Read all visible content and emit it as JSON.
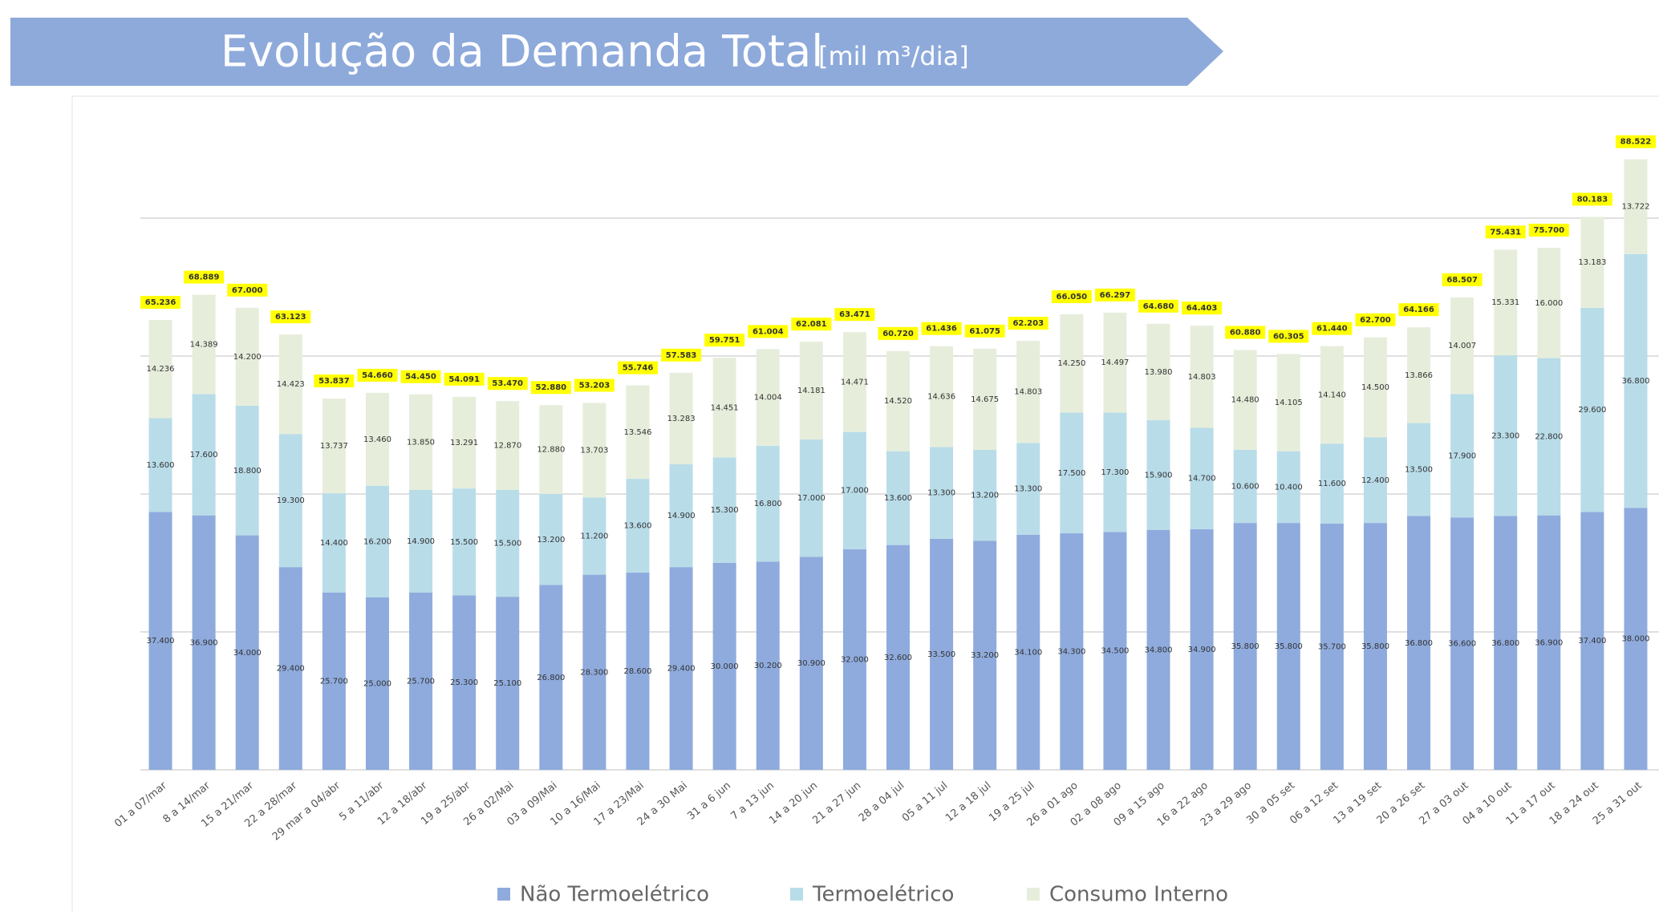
{
  "chart_data": {
    "type": "stacked_bar",
    "title": "Evolução da Demanda Total",
    "subtitle": "[mil m³/dia]",
    "categories": [
      "01 a 07/mar",
      "8 a 14/mar",
      "15 a 21/mar",
      "22 a 28/mar",
      "29 mar a 04/abr",
      "5 a 11/abr",
      "12 a 18/abr",
      "19 a 25/abr",
      "26 a 02/Mai",
      "03 a 09/Mai",
      "10 a 16/Mai",
      "17 a 23/Mai",
      "24 a 30 Mai",
      "31 a 6 jun",
      "7 a 13 jun",
      "14 a 20 jun",
      "21 a 27 jun",
      "28 a 04 jul",
      "05 a 11 jul",
      "12 a 18 jul",
      "19 a 25 jul",
      "26 a 01 ago",
      "02 a 08 ago",
      "09 a 15 ago",
      "16 a 22 ago",
      "23 a 29 ago",
      "30 a 05 set",
      "06 a 12 set",
      "13 a 19 set",
      "20 a 26 set",
      "27 a 03 out",
      "04 a 10 out",
      "11 a 17 out",
      "18 a 24 out",
      "25 a 31 out"
    ],
    "series": [
      {
        "name": "Não Termoelétrico",
        "color": "#8fabdd",
        "values": [
          37400,
          36900,
          34000,
          29400,
          25700,
          25000,
          25700,
          25300,
          25100,
          26800,
          28300,
          28600,
          29400,
          30000,
          30200,
          30900,
          32000,
          32600,
          33500,
          33200,
          34100,
          34300,
          34500,
          34800,
          34900,
          35800,
          35800,
          35700,
          35800,
          36800,
          36600,
          36800,
          36900,
          37400,
          38000
        ],
        "value_labels": [
          "37.400",
          "36.900",
          "34.000",
          "29.400",
          "25.700",
          "25.000",
          "25.700",
          "25.300",
          "25.100",
          "26.800",
          "28.300",
          "28.600",
          "29.400",
          "30.000",
          "30.200",
          "30.900",
          "32.000",
          "32.600",
          "33.500",
          "33.200",
          "34.100",
          "34.300",
          "34.500",
          "34.800",
          "34.900",
          "35.800",
          "35.800",
          "35.700",
          "35.800",
          "36.800",
          "36.600",
          "36.800",
          "36.900",
          "37.400",
          "38.000"
        ]
      },
      {
        "name": "Termoelétrico",
        "color": "#b9dce9",
        "values": [
          13600,
          17600,
          18800,
          19300,
          14400,
          16200,
          14900,
          15500,
          15500,
          13200,
          11200,
          13600,
          14900,
          15300,
          16800,
          17000,
          17000,
          13600,
          13300,
          13200,
          13300,
          17500,
          17300,
          15900,
          14700,
          10600,
          10400,
          11600,
          12400,
          13500,
          17900,
          23300,
          22800,
          29600,
          36800
        ],
        "value_labels": [
          "13.600",
          "17.600",
          "18.800",
          "19.300",
          "14.400",
          "16.200",
          "14.900",
          "15.500",
          "15.500",
          "13.200",
          "11.200",
          "13.600",
          "14.900",
          "15.300",
          "16.800",
          "17.000",
          "17.000",
          "13.600",
          "13.300",
          "13.200",
          "13.300",
          "17.500",
          "17.300",
          "15.900",
          "14.700",
          "10.600",
          "10.400",
          "11.600",
          "12.400",
          "13.500",
          "17.900",
          "23.300",
          "22.800",
          "29.600",
          "36.800"
        ]
      },
      {
        "name": "Consumo Interno",
        "color": "#e6eedb",
        "values": [
          14236,
          14389,
          14200,
          14423,
          13737,
          13460,
          13850,
          13291,
          12870,
          12880,
          13703,
          13546,
          13283,
          14451,
          14004,
          14181,
          14471,
          14520,
          14636,
          14675,
          14803,
          14250,
          14497,
          13980,
          14803,
          14480,
          14105,
          14140,
          14500,
          13866,
          14007,
          15331,
          16000,
          13183,
          13722
        ],
        "value_labels": [
          "14.236",
          "14.389",
          "14.200",
          "14.423",
          "13.737",
          "13.460",
          "13.850",
          "13.291",
          "12.870",
          "12.880",
          "13.703",
          "13.546",
          "13.283",
          "14.451",
          "14.004",
          "14.181",
          "14.471",
          "14.520",
          "14.636",
          "14.675",
          "14.803",
          "14.250",
          "14.497",
          "13.980",
          "14.803",
          "14.480",
          "14.105",
          "14.140",
          "14.500",
          "13.866",
          "14.007",
          "15.331",
          "16.000",
          "13.183",
          "13.722"
        ]
      }
    ],
    "totals": {
      "values": [
        65236,
        68889,
        67000,
        63123,
        53837,
        54660,
        54450,
        54091,
        53470,
        52880,
        53203,
        55746,
        57583,
        59751,
        61004,
        62081,
        63471,
        60720,
        61436,
        61075,
        62203,
        66050,
        66297,
        64680,
        64403,
        60880,
        60305,
        61440,
        62700,
        64166,
        68507,
        75431,
        75700,
        80183,
        88522
      ],
      "value_labels": [
        "65.236",
        "68.889",
        "67.000",
        "63.123",
        "53.837",
        "54.660",
        "54.450",
        "54.091",
        "53.470",
        "52.880",
        "53.203",
        "55.746",
        "57.583",
        "59.751",
        "61.004",
        "62.081",
        "63.471",
        "60.720",
        "61.436",
        "61.075",
        "62.203",
        "66.050",
        "66.297",
        "64.680",
        "64.403",
        "60.880",
        "60.305",
        "61.440",
        "62.700",
        "64.166",
        "68.507",
        "75.431",
        "75.700",
        "80.183",
        "88.522"
      ],
      "color": "#ffff00"
    },
    "ylim": [
      0,
      100000
    ],
    "yticks": [
      0,
      20000,
      40000,
      60000,
      80000
    ],
    "grid": true
  }
}
